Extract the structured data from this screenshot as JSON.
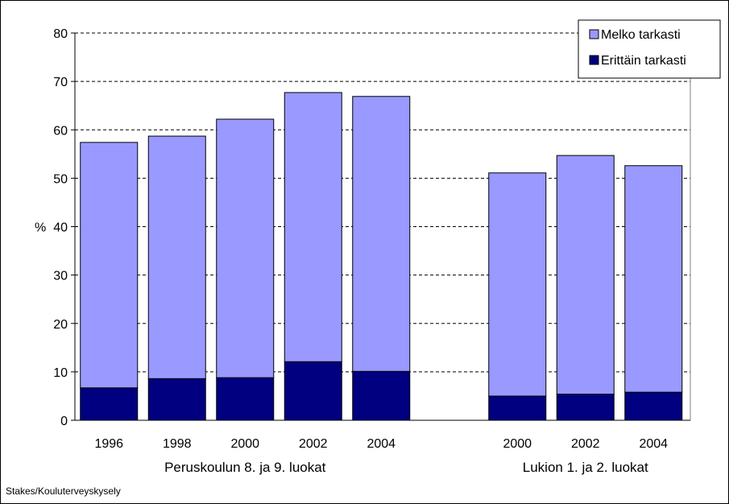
{
  "chart_data": {
    "type": "bar",
    "stacked": true,
    "ylabel": "%",
    "ylim": [
      0,
      80
    ],
    "yticks": [
      0,
      10,
      20,
      30,
      40,
      50,
      60,
      70,
      80
    ],
    "grid": "dashed horizontal",
    "legend_position": "top-right",
    "groups": [
      {
        "label": "Peruskoulun 8. ja 9. luokat",
        "categories": [
          "1996",
          "1998",
          "2000",
          "2002",
          "2004"
        ]
      },
      {
        "label": "Lukion 1. ja 2. luokat",
        "categories": [
          "2000",
          "2002",
          "2004"
        ]
      }
    ],
    "series": [
      {
        "name": "Erittäin tarkasti",
        "color": "#000080",
        "values": [
          6.7,
          8.6,
          8.8,
          12.1,
          10.1,
          5.0,
          5.4,
          5.8
        ]
      },
      {
        "name": "Melko tarkasti",
        "color": "#9999ff",
        "values": [
          50.7,
          50.1,
          53.4,
          55.6,
          56.8,
          46.1,
          49.3,
          46.8
        ]
      }
    ]
  },
  "source": "Stakes/Kouluterveyskysely"
}
